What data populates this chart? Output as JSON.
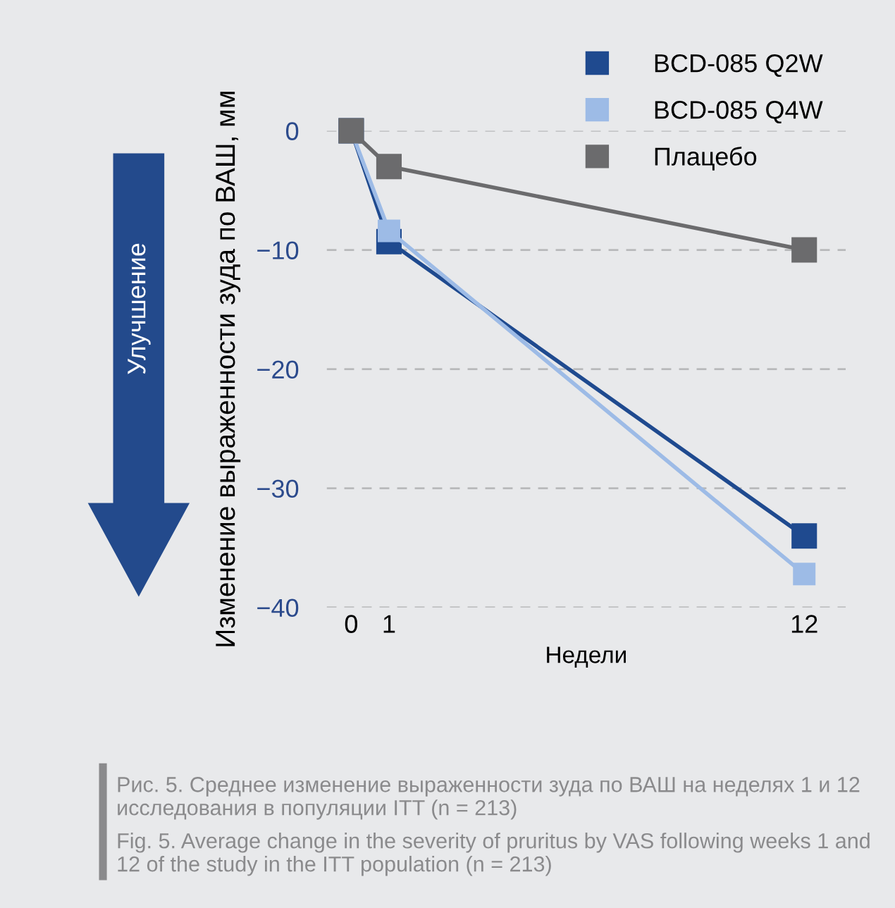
{
  "chart_data": {
    "type": "line",
    "x": [
      0,
      1,
      12
    ],
    "series": [
      {
        "name": "BCD-085 Q2W",
        "color": "#1f4a8f",
        "values": [
          0,
          -9.3,
          -34
        ]
      },
      {
        "name": "BCD-085 Q4W",
        "color": "#9dbbe6",
        "values": [
          0,
          -8.4,
          -37.2
        ]
      },
      {
        "name": "Плацебо",
        "color": "#6b6b6d",
        "values": [
          0,
          -3,
          -10
        ]
      }
    ],
    "xlabel": "Недели",
    "ylabel": "Изменение выраженности зуда по ВАШ, мм",
    "xlim": [
      -0.65,
      13.1
    ],
    "xticks": [
      0,
      1,
      12
    ],
    "ylim": [
      -40,
      0
    ],
    "yticks": [
      {
        "value": 0,
        "label": "0"
      },
      {
        "value": -10,
        "label": "−10"
      },
      {
        "value": -20,
        "label": "−20"
      },
      {
        "value": -30,
        "label": "−30"
      },
      {
        "value": -40,
        "label": "−40"
      }
    ],
    "grid": "y",
    "legend": "top right",
    "marker": "square",
    "line_style": "solid",
    "annotations": [
      "Улучшение",
      "Рис. 5. Среднее изменение выраженности зуда по ВАШ на неделях 1 и 12 исследования в популяции ITT (n = 213)",
      "Fig. 5. Average change in the severity of pruritus by VAS following weeks 1 and 12 of the study in the ITT population (n = 213)"
    ]
  }
}
